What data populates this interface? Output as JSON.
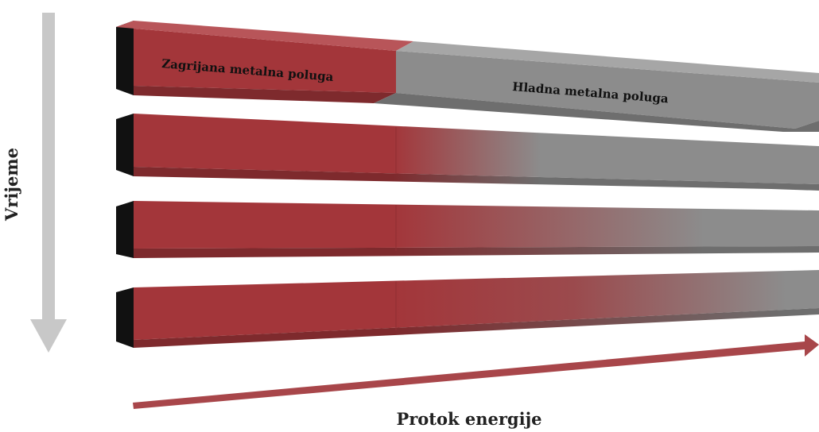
{
  "labels": {
    "hot_bar": "Zagrijana metalna poluga",
    "cold_bar": "Hladna metalna poluga",
    "time_axis": "Vrijeme",
    "energy_axis": "Protok energije"
  },
  "colors": {
    "hot": "#a3363a",
    "hot_dark": "#7e2a2d",
    "cold": "#8c8c8c",
    "cold_dark": "#6e6e6e",
    "bar_end": "#111111",
    "time_arrow": "#c8c8c8",
    "energy_arrow": "#a8464a"
  },
  "stages": [
    {
      "step": 1,
      "state": "initial: left half heated, right half cold"
    },
    {
      "step": 2,
      "state": "heat begins spreading into cold half"
    },
    {
      "step": 3,
      "state": "heat spread further"
    },
    {
      "step": 4,
      "state": "heat spread nearly to the far end"
    }
  ]
}
